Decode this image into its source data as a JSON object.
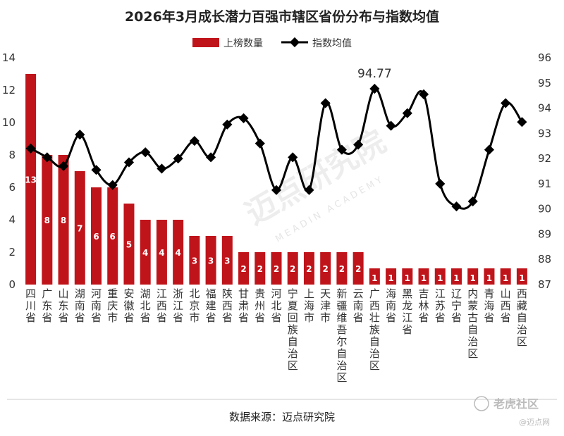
{
  "watermark": {
    "text": "迈点研究院",
    "sub": "MEADIN ACADEMY"
  },
  "corner_marks": {
    "primary": "老虎社区",
    "secondary": "@迈点网"
  },
  "source_text": "数据来源：迈点研究院",
  "chart_data": {
    "type": "bar",
    "title": "2026年3月成长潜力百强市辖区省份分布与指数均值",
    "categories": [
      "四川省",
      "广东省",
      "山东省",
      "湖南省",
      "河南省",
      "重庆市",
      "安徽省",
      "湖北省",
      "江西省",
      "浙江省",
      "北京市",
      "福建省",
      "陕西省",
      "甘肃省",
      "贵州省",
      "河北省",
      "宁夏回族自治区",
      "上海市",
      "天津市",
      "新疆维吾尔自治区",
      "云南省",
      "广西壮族自治区",
      "海南省",
      "黑龙江省",
      "吉林省",
      "江苏省",
      "辽宁省",
      "内蒙古自治区",
      "青海省",
      "山西省",
      "西藏自治区"
    ],
    "series": [
      {
        "name": "上榜数量",
        "type": "bar",
        "axis": "left",
        "color": "#c0141b",
        "values": [
          13,
          8,
          8,
          7,
          6,
          6,
          5,
          4,
          4,
          4,
          3,
          3,
          3,
          2,
          2,
          2,
          2,
          2,
          2,
          2,
          2,
          1,
          1,
          1,
          1,
          1,
          1,
          1,
          1,
          1,
          1
        ]
      },
      {
        "name": "指数均值",
        "type": "line",
        "axis": "right",
        "color": "#000000",
        "values": [
          92.4,
          92.05,
          91.7,
          92.95,
          91.55,
          90.95,
          91.85,
          92.25,
          91.6,
          92.0,
          92.7,
          92.05,
          93.35,
          93.6,
          92.6,
          90.75,
          92.05,
          90.75,
          94.2,
          92.35,
          92.55,
          94.77,
          93.3,
          93.8,
          94.55,
          91.0,
          90.1,
          90.3,
          92.35,
          94.2,
          93.45
        ]
      }
    ],
    "annotations": [
      {
        "category": "广西壮族自治区",
        "text": "94.77"
      }
    ],
    "yaxis_left": {
      "min": 0,
      "max": 14,
      "step": 2,
      "ticks": [
        "0",
        "2",
        "4",
        "6",
        "8",
        "10",
        "12",
        "14"
      ]
    },
    "yaxis_right": {
      "min": 87,
      "max": 96,
      "step": 1,
      "ticks": [
        "87",
        "88",
        "89",
        "90",
        "91",
        "92",
        "93",
        "94",
        "95",
        "96"
      ]
    },
    "xlabel": "",
    "ylabel": "",
    "legend_position": "top-center",
    "grid": false
  }
}
